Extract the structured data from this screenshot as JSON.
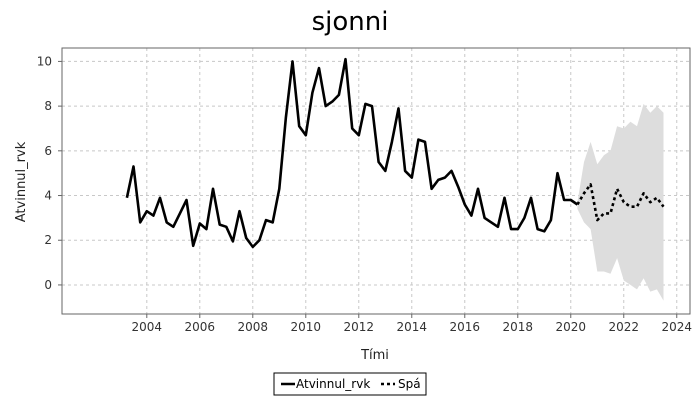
{
  "chart_data": {
    "type": "line",
    "title": "sjonni",
    "xlabel": "Tími",
    "ylabel": "Atvinnul_rvk",
    "xlim": [
      2000.8,
      2024.5
    ],
    "ylim": [
      -1.3,
      10.6
    ],
    "grid": true,
    "legend_position": "bottom",
    "x_ticks": [
      {
        "value": 2004,
        "label": "2004"
      },
      {
        "value": 2006,
        "label": "2006"
      },
      {
        "value": 2008,
        "label": "2008"
      },
      {
        "value": 2010,
        "label": "2010"
      },
      {
        "value": 2012,
        "label": "2012"
      },
      {
        "value": 2014,
        "label": "2014"
      },
      {
        "value": 2016,
        "label": "2016"
      },
      {
        "value": 2018,
        "label": "2018"
      },
      {
        "value": 2020,
        "label": "2020"
      },
      {
        "value": 2022,
        "label": "2022"
      },
      {
        "value": 2024,
        "label": "2024"
      }
    ],
    "y_ticks": [
      {
        "value": 0,
        "label": "0"
      },
      {
        "value": 2,
        "label": "2"
      },
      {
        "value": 4,
        "label": "4"
      },
      {
        "value": 6,
        "label": "6"
      },
      {
        "value": 8,
        "label": "8"
      },
      {
        "value": 10,
        "label": "10"
      }
    ],
    "series": [
      {
        "name": "Atvinnul_rvk",
        "style": "solid",
        "color": "#000000",
        "points": [
          [
            2003.25,
            3.9
          ],
          [
            2003.5,
            5.3
          ],
          [
            2003.75,
            2.8
          ],
          [
            2004.0,
            3.3
          ],
          [
            2004.25,
            3.1
          ],
          [
            2004.5,
            3.9
          ],
          [
            2004.75,
            2.8
          ],
          [
            2005.0,
            2.6
          ],
          [
            2005.25,
            3.2
          ],
          [
            2005.5,
            3.8
          ],
          [
            2005.75,
            1.75
          ],
          [
            2006.0,
            2.75
          ],
          [
            2006.25,
            2.5
          ],
          [
            2006.5,
            4.3
          ],
          [
            2006.75,
            2.7
          ],
          [
            2007.0,
            2.6
          ],
          [
            2007.25,
            1.95
          ],
          [
            2007.5,
            3.3
          ],
          [
            2007.75,
            2.1
          ],
          [
            2008.0,
            1.7
          ],
          [
            2008.25,
            2.0
          ],
          [
            2008.5,
            2.9
          ],
          [
            2008.75,
            2.8
          ],
          [
            2009.0,
            4.3
          ],
          [
            2009.25,
            7.5
          ],
          [
            2009.5,
            10.0
          ],
          [
            2009.75,
            7.1
          ],
          [
            2010.0,
            6.7
          ],
          [
            2010.25,
            8.6
          ],
          [
            2010.5,
            9.7
          ],
          [
            2010.75,
            8.0
          ],
          [
            2011.0,
            8.2
          ],
          [
            2011.25,
            8.5
          ],
          [
            2011.5,
            10.1
          ],
          [
            2011.75,
            7.0
          ],
          [
            2012.0,
            6.7
          ],
          [
            2012.25,
            8.1
          ],
          [
            2012.5,
            8.0
          ],
          [
            2012.75,
            5.5
          ],
          [
            2013.0,
            5.1
          ],
          [
            2013.25,
            6.4
          ],
          [
            2013.5,
            7.9
          ],
          [
            2013.75,
            5.1
          ],
          [
            2014.0,
            4.8
          ],
          [
            2014.25,
            6.5
          ],
          [
            2014.5,
            6.4
          ],
          [
            2014.75,
            4.3
          ],
          [
            2015.0,
            4.7
          ],
          [
            2015.25,
            4.8
          ],
          [
            2015.5,
            5.1
          ],
          [
            2015.75,
            4.4
          ],
          [
            2016.0,
            3.6
          ],
          [
            2016.25,
            3.1
          ],
          [
            2016.5,
            4.3
          ],
          [
            2016.75,
            3.0
          ],
          [
            2017.0,
            2.8
          ],
          [
            2017.25,
            2.6
          ],
          [
            2017.5,
            3.9
          ],
          [
            2017.75,
            2.5
          ],
          [
            2018.0,
            2.5
          ],
          [
            2018.25,
            3.0
          ],
          [
            2018.5,
            3.9
          ],
          [
            2018.75,
            2.5
          ],
          [
            2019.0,
            2.4
          ],
          [
            2019.25,
            2.9
          ],
          [
            2019.5,
            5.0
          ],
          [
            2019.75,
            3.8
          ],
          [
            2020.0,
            3.8
          ],
          [
            2020.25,
            3.6
          ]
        ]
      },
      {
        "name": "Spá",
        "style": "dotted",
        "color": "#000000",
        "points": [
          [
            2020.25,
            3.6
          ],
          [
            2020.5,
            4.1
          ],
          [
            2020.75,
            4.5
          ],
          [
            2021.0,
            2.9
          ],
          [
            2021.25,
            3.2
          ],
          [
            2021.5,
            3.2
          ],
          [
            2021.75,
            4.3
          ],
          [
            2022.0,
            3.7
          ],
          [
            2022.25,
            3.5
          ],
          [
            2022.5,
            3.5
          ],
          [
            2022.75,
            4.1
          ],
          [
            2023.0,
            3.7
          ],
          [
            2023.25,
            3.9
          ],
          [
            2023.5,
            3.5
          ]
        ]
      }
    ],
    "band": {
      "color": "#dddddd",
      "points": [
        [
          2020.25,
          3.7,
          3.4
        ],
        [
          2020.5,
          5.5,
          2.8
        ],
        [
          2020.75,
          6.4,
          2.5
        ],
        [
          2021.0,
          5.4,
          0.6
        ],
        [
          2021.25,
          5.8,
          0.6
        ],
        [
          2021.5,
          6.0,
          0.5
        ],
        [
          2021.75,
          7.1,
          1.2
        ],
        [
          2022.0,
          7.0,
          0.2
        ],
        [
          2022.25,
          7.3,
          0.0
        ],
        [
          2022.5,
          7.1,
          -0.2
        ],
        [
          2022.75,
          8.1,
          0.3
        ],
        [
          2023.0,
          7.7,
          -0.3
        ],
        [
          2023.25,
          8.0,
          -0.2
        ],
        [
          2023.5,
          7.7,
          -0.7
        ]
      ]
    }
  }
}
